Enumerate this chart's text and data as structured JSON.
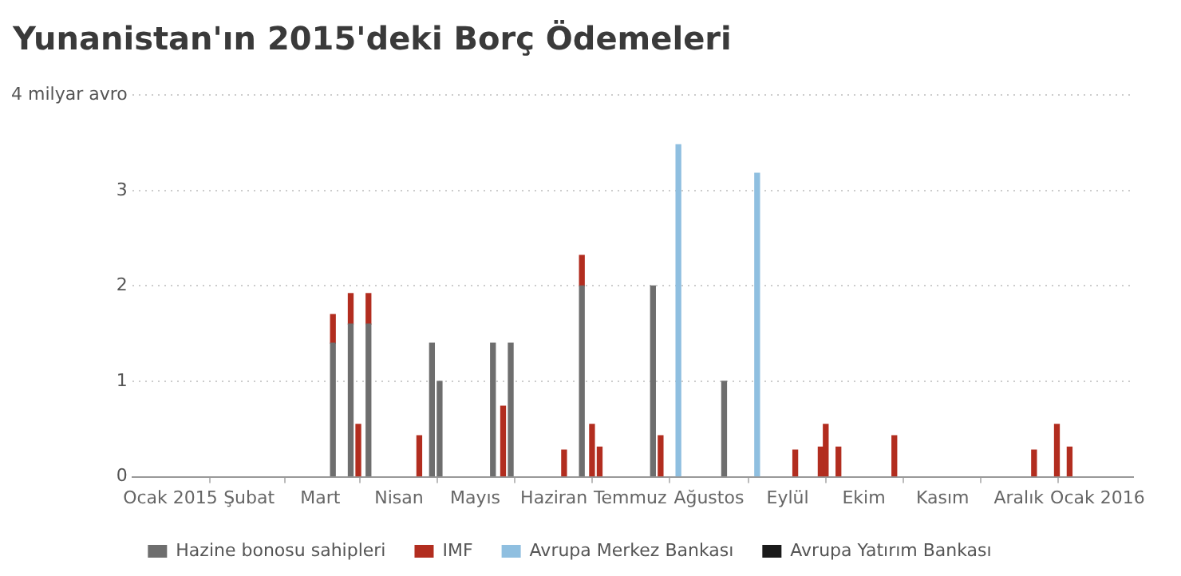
{
  "chart_data": {
    "type": "bar",
    "title": "Yunanistan'ın 2015'deki Borç Ödemeleri",
    "stacked": true,
    "grid": "y",
    "legend": "bottom",
    "x": [
      "2015-03-06",
      "2015-03-13",
      "2015-03-16",
      "2015-03-20",
      "2015-04-09",
      "2015-04-14",
      "2015-04-17",
      "2015-05-08",
      "2015-05-12",
      "2015-05-15",
      "2015-06-05",
      "2015-06-12",
      "2015-06-16",
      "2015-06-19",
      "2015-07-10",
      "2015-07-13",
      "2015-07-20",
      "2015-08-07",
      "2015-08-20",
      "2015-09-04",
      "2015-09-14",
      "2015-09-16",
      "2015-09-21",
      "2015-10-13",
      "2015-12-07",
      "2015-12-16",
      "2015-12-21"
    ],
    "series": [
      {
        "name": "Hazine bonosu sahipleri",
        "color": "#6e6e6e",
        "values": [
          1.4,
          1.6,
          null,
          1.6,
          null,
          1.4,
          1.0,
          1.4,
          null,
          1.4,
          null,
          2.0,
          null,
          null,
          2.0,
          null,
          null,
          1.0,
          null,
          null,
          null,
          null,
          null,
          null,
          null,
          null,
          null
        ]
      },
      {
        "name": "IMF",
        "color": "#b22d1f",
        "values": [
          0.3,
          0.32,
          0.55,
          0.32,
          0.43,
          null,
          null,
          null,
          0.74,
          null,
          0.28,
          0.32,
          0.55,
          0.31,
          null,
          0.43,
          null,
          null,
          null,
          0.28,
          0.31,
          0.55,
          0.31,
          0.43,
          0.28,
          0.55,
          0.31
        ]
      },
      {
        "name": "Avrupa Merkez Bankası",
        "color": "#8fbfe0",
        "values": [
          null,
          null,
          null,
          null,
          null,
          null,
          null,
          null,
          null,
          null,
          null,
          null,
          null,
          null,
          null,
          null,
          3.48,
          null,
          3.18,
          null,
          null,
          null,
          null,
          null,
          null,
          null,
          null
        ]
      },
      {
        "name": "Avrupa Yatırım Bankası",
        "color": "#1a1a1a",
        "values": [
          null,
          null,
          null,
          null,
          null,
          null,
          null,
          null,
          null,
          null,
          null,
          null,
          null,
          null,
          null,
          null,
          null,
          null,
          null,
          null,
          null,
          null,
          null,
          null,
          null,
          null,
          null
        ]
      }
    ],
    "xlim": [
      "2014-12-17",
      "2016-01-15"
    ],
    "xticks": [
      {
        "value": "2015-01-01",
        "label": "Ocak 2015"
      },
      {
        "value": "2015-02-01",
        "label": "Şubat"
      },
      {
        "value": "2015-03-01",
        "label": "Mart"
      },
      {
        "value": "2015-04-01",
        "label": "Nisan"
      },
      {
        "value": "2015-05-01",
        "label": "Mayıs"
      },
      {
        "value": "2015-06-01",
        "label": "Haziran"
      },
      {
        "value": "2015-07-01",
        "label": "Temmuz"
      },
      {
        "value": "2015-08-01",
        "label": "Ağustos"
      },
      {
        "value": "2015-09-01",
        "label": "Eylül"
      },
      {
        "value": "2015-10-01",
        "label": "Ekim"
      },
      {
        "value": "2015-11-01",
        "label": "Kasım"
      },
      {
        "value": "2015-12-01",
        "label": "Aralık"
      },
      {
        "value": "2016-01-01",
        "label": "Ocak 2016"
      }
    ],
    "ylim": [
      0,
      4
    ],
    "yticks": [
      0,
      1,
      2,
      3,
      {
        "value": 4,
        "label": "4 milyar avro"
      }
    ]
  }
}
